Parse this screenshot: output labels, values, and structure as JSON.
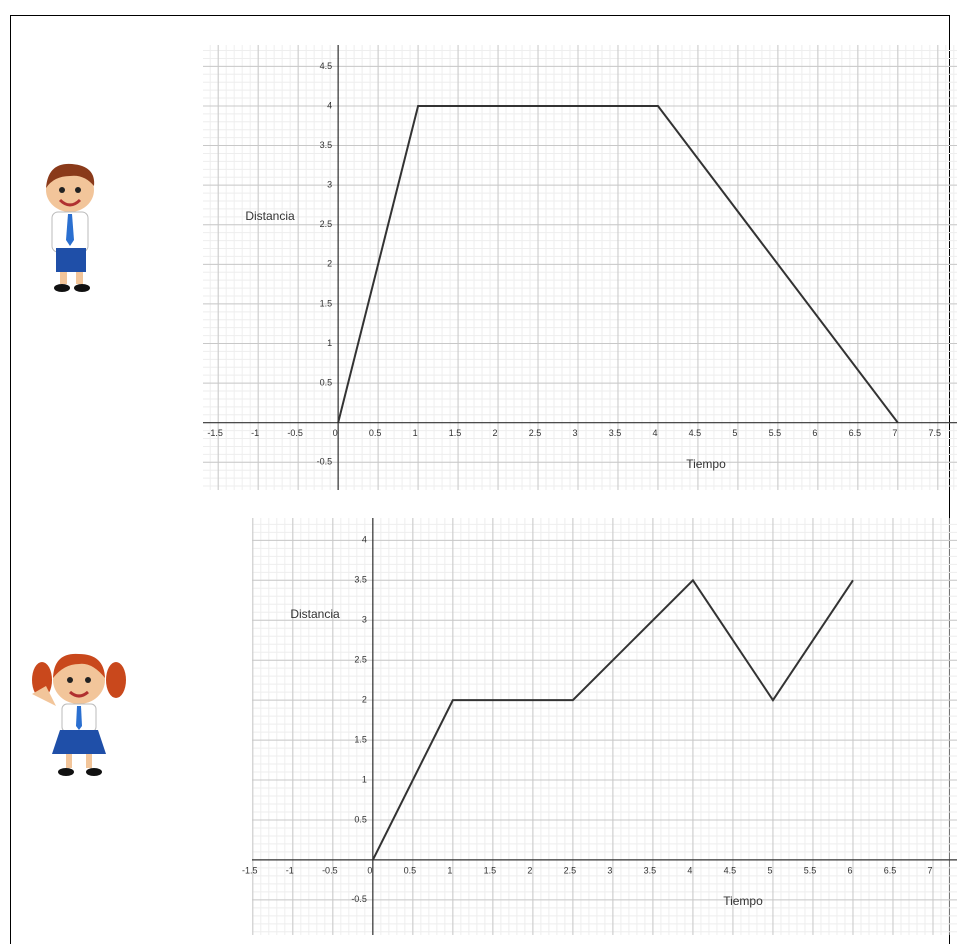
{
  "chart_data": [
    {
      "type": "line",
      "x_label": "Tiempo",
      "y_label": "Distancia",
      "series": [
        {
          "color": "#333333",
          "x": [
            0,
            1,
            4,
            7
          ],
          "values": [
            0,
            4,
            4,
            0
          ]
        }
      ],
      "xlim": [
        -1.69,
        7.74
      ],
      "ylim": [
        -0.85,
        4.77
      ],
      "xticks": [
        -1.5,
        -1,
        -0.5,
        0,
        0.5,
        1,
        1.5,
        2,
        2.5,
        3,
        3.5,
        4,
        4.5,
        5,
        5.5,
        6,
        6.5,
        7,
        7.5
      ],
      "yticks": [
        -0.5,
        0.5,
        1,
        1.5,
        2,
        2.5,
        3,
        3.5,
        4,
        4.5
      ],
      "grid": true
    },
    {
      "type": "line",
      "x_label": "Tiempo",
      "y_label": "Distancia",
      "series": [
        {
          "color": "#333333",
          "x": [
            0,
            1,
            2.5,
            4,
            5,
            6
          ],
          "values": [
            0,
            2,
            2,
            3.5,
            2,
            3.5
          ]
        }
      ],
      "xlim": [
        -1.51,
        7.3
      ],
      "ylim": [
        -0.94,
        4.28
      ],
      "xticks": [
        -1.5,
        -1,
        -0.5,
        0,
        0.5,
        1,
        1.5,
        2,
        2.5,
        3,
        3.5,
        4,
        4.5,
        5,
        5.5,
        6,
        6.5,
        7
      ],
      "yticks": [
        -0.5,
        0.5,
        1,
        1.5,
        2,
        2.5,
        3,
        3.5,
        4
      ],
      "grid": true
    }
  ]
}
